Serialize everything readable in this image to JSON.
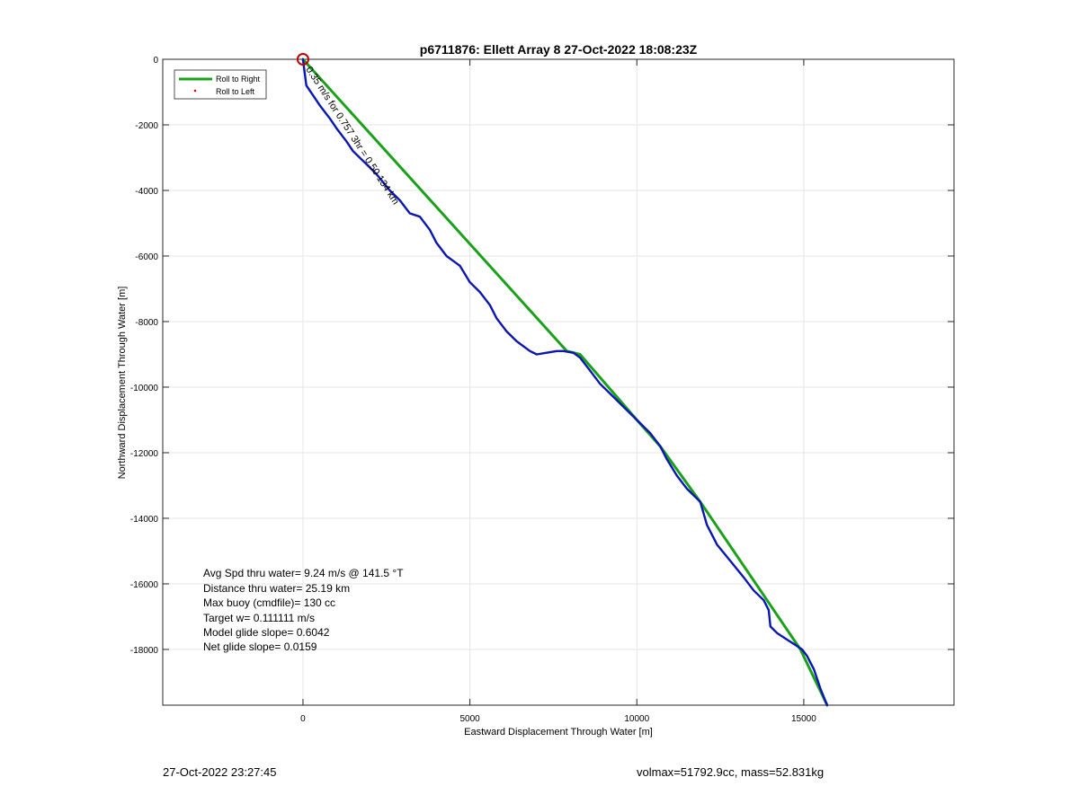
{
  "chart_data": {
    "type": "line",
    "title": "p6711876: Ellett Array 8 27-Oct-2022 18:08:23Z",
    "xlabel": "Eastward Displacement Through Water [m]",
    "ylabel": "Northward Displacement Through Water [m]",
    "xlim": [
      -4200,
      19500
    ],
    "ylim": [
      -19700,
      0
    ],
    "xticks": [
      0,
      5000,
      10000,
      15000
    ],
    "yticks": [
      0,
      -2000,
      -4000,
      -6000,
      -8000,
      -10000,
      -12000,
      -14000,
      -16000,
      -18000
    ],
    "grid": true,
    "legend_position": "top-left",
    "legend": [
      {
        "label": "Roll to Right",
        "color": "#1aa11a",
        "style": "line"
      },
      {
        "label": "Roll to Left",
        "color": "#e00000",
        "style": "dot"
      }
    ],
    "series": [
      {
        "name": "Roll to Right",
        "color": "#1aa11a",
        "x": [
          0,
          7900,
          8300,
          10000,
          10700,
          11900,
          13900,
          14900,
          15700
        ],
        "y": [
          0,
          -8900,
          -9000,
          -11000,
          -11800,
          -13500,
          -16500,
          -18000,
          -19700
        ]
      },
      {
        "color": "#0a16b4",
        "x": [
          0,
          100,
          300,
          500,
          800,
          1000,
          1300,
          1500,
          1800,
          2200,
          2600,
          2900,
          3200,
          3500,
          3800,
          4000,
          4300,
          4700,
          5000,
          5300,
          5600,
          5800,
          6100,
          6400,
          6800,
          7000,
          7300,
          7600,
          7800,
          8100,
          8300,
          8600,
          8900,
          9300,
          9700,
          10000,
          10400,
          10700,
          10900,
          11200,
          11500,
          11900,
          12100,
          12400,
          12800,
          13200,
          13500,
          13800,
          13950,
          14000,
          14200,
          14500,
          14800,
          14950,
          15100,
          15300,
          15500,
          15700
        ],
        "y": [
          0,
          -800,
          -1100,
          -1400,
          -1800,
          -2100,
          -2500,
          -2800,
          -3100,
          -3500,
          -4000,
          -4300,
          -4700,
          -4800,
          -5200,
          -5600,
          -6000,
          -6300,
          -6800,
          -7100,
          -7500,
          -7900,
          -8300,
          -8600,
          -8900,
          -9000,
          -8950,
          -8900,
          -8900,
          -8950,
          -9100,
          -9500,
          -9900,
          -10300,
          -10700,
          -11000,
          -11400,
          -11800,
          -12200,
          -12700,
          -13100,
          -13500,
          -14200,
          -14800,
          -15300,
          -15800,
          -16200,
          -16500,
          -16800,
          -17300,
          -17500,
          -17700,
          -17900,
          -18000,
          -18200,
          -18600,
          -19200,
          -19700
        ]
      }
    ],
    "marker": {
      "x": 0,
      "y": 0,
      "color": "#c00000"
    },
    "annotations": [
      {
        "text": "0.35 m/s for 0.757 3hr = 0.50 134 km",
        "x": 80,
        "y": -300,
        "angle": 57
      }
    ],
    "summary_lines": [
      "Avg Spd thru water=  9.24 m/s @ 141.5 °T",
      "Distance thru water= 25.19 km",
      "Max buoy (cmdfile)= 130 cc",
      "Target w= 0.111111 m/s",
      "Model glide slope= 0.6042",
      "Net glide slope= 0.0159"
    ]
  },
  "footer": {
    "timestamp": "27-Oct-2022 23:27:45",
    "volmax": "volmax=51792.9cc, mass=52.831kg"
  }
}
